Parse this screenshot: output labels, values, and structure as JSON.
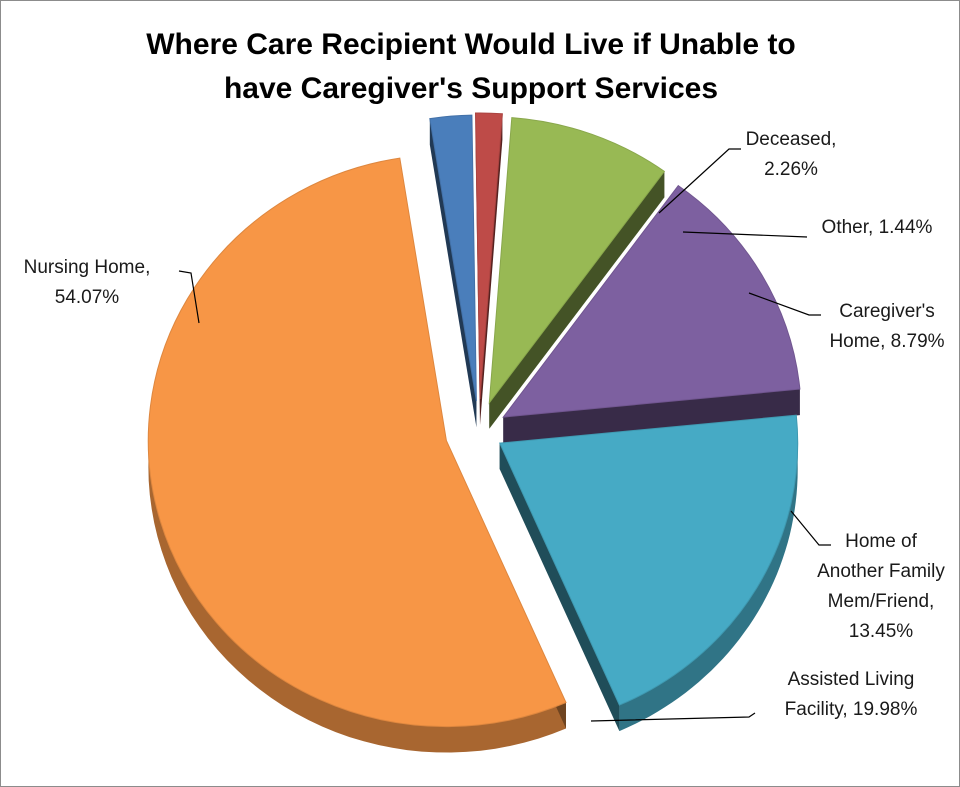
{
  "chart_data": {
    "type": "pie",
    "title_lines": [
      "Where Care Recipient Would Live if Unable to",
      "have Caregiver's Support Services"
    ],
    "slices": [
      {
        "category": "Deceased",
        "value": 2.26,
        "label_lines": [
          "Deceased,",
          "2.26%"
        ],
        "color": "#4a7ebb"
      },
      {
        "category": "Other",
        "value": 1.44,
        "label_lines": [
          "Other, 1.44%"
        ],
        "color": "#be4b48"
      },
      {
        "category": "Caregiver's Home",
        "value": 8.79,
        "label_lines": [
          "Caregiver's",
          "Home, 8.79%"
        ],
        "color": "#98b954"
      },
      {
        "category": "Home of Another Family Mem/Friend",
        "value": 13.45,
        "label_lines": [
          "Home of",
          "Another Family",
          "Mem/Friend,",
          "13.45%"
        ],
        "color": "#7d60a0"
      },
      {
        "category": "Assisted Living Facility",
        "value": 19.98,
        "label_lines": [
          "Assisted Living",
          "Facility, 19.98%"
        ],
        "color": "#46aac5"
      },
      {
        "category": "Nursing Home",
        "value": 54.07,
        "label_lines": [
          "Nursing Home,",
          "54.07%"
        ],
        "color": "#f79646"
      }
    ],
    "legend": "none",
    "style": "3d-exploded"
  }
}
